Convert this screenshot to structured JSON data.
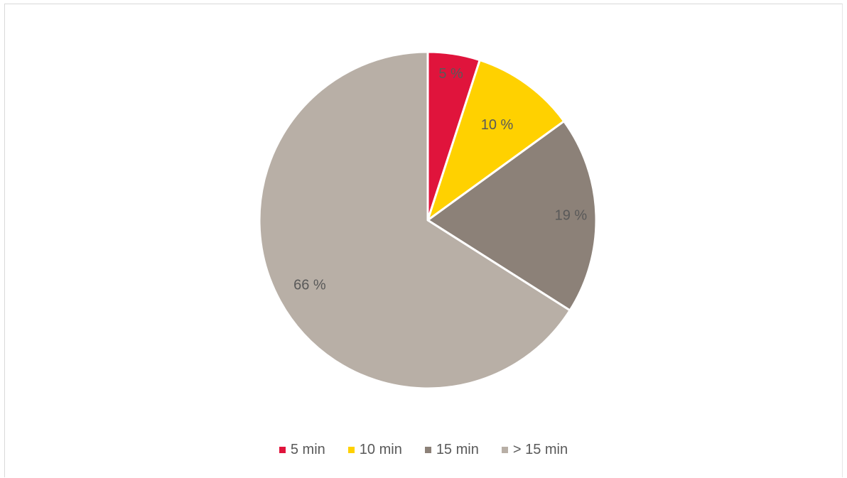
{
  "chart_data": {
    "type": "pie",
    "title": "",
    "categories": [
      "5 min",
      "10 min",
      "15 min",
      "> 15 min"
    ],
    "values": [
      5,
      10,
      19,
      66
    ],
    "data_labels": [
      "5 %",
      "10 %",
      "19 %",
      "66 %"
    ],
    "colors": [
      "#e0143c",
      "#ffd100",
      "#8c8178",
      "#b8afa6"
    ],
    "legend": {
      "position": "bottom"
    },
    "start_angle": "12 o'clock",
    "direction": "clockwise"
  }
}
